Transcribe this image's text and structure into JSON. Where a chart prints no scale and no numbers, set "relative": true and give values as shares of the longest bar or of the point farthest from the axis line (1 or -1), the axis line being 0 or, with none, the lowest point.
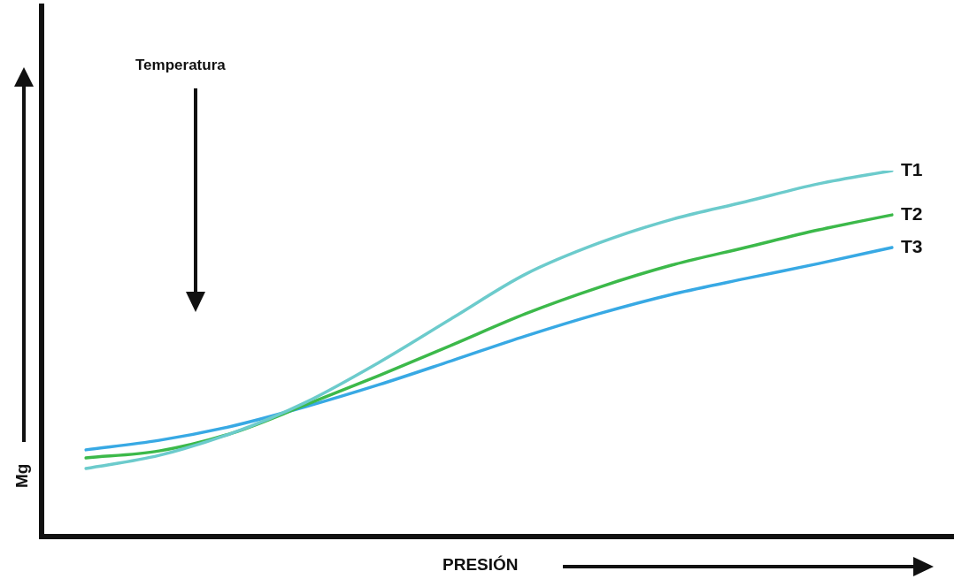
{
  "chart_data": {
    "type": "line",
    "relative": true,
    "xlabel": "PRESIÓN",
    "ylabel": "Mg",
    "annotations": [
      "Temperatura"
    ],
    "categories": [
      null,
      null,
      null,
      null,
      null,
      null,
      null,
      null,
      null,
      null,
      null,
      null
    ],
    "series": [
      {
        "name": "T1",
        "color": "#6ccbcc",
        "values": [
          0.186,
          0.222,
          0.283,
          0.367,
          0.476,
          0.597,
          0.717,
          0.802,
          0.867,
          0.915,
          0.964,
          1
        ]
      },
      {
        "name": "T2",
        "color": "#3cb94a",
        "values": [
          0.215,
          0.234,
          0.283,
          0.36,
          0.44,
          0.524,
          0.609,
          0.681,
          0.742,
          0.79,
          0.838,
          0.879
        ]
      },
      {
        "name": "T3",
        "color": "#38a9e4",
        "values": [
          0.237,
          0.263,
          0.302,
          0.355,
          0.415,
          0.481,
          0.548,
          0.609,
          0.662,
          0.705,
          0.746,
          0.79
        ]
      }
    ]
  }
}
